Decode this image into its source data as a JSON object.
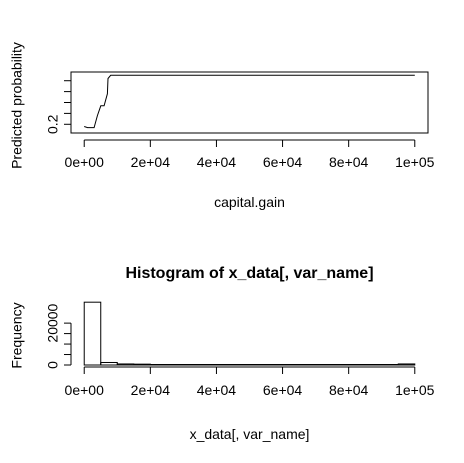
{
  "colors": {
    "background": "#ffffff",
    "ink": "#000000"
  },
  "chart_data": [
    {
      "type": "line",
      "title": "",
      "xlabel": "capital.gain",
      "ylabel": "Predicted probability",
      "xlim": [
        -4000,
        104000
      ],
      "ylim": [
        0.12,
        0.68
      ],
      "grid": false,
      "x_ticks": [
        0,
        20000,
        40000,
        60000,
        80000,
        100000
      ],
      "x_tick_labels": [
        "0e+00",
        "2e+04",
        "4e+04",
        "6e+04",
        "8e+04",
        "1e+05"
      ],
      "y_ticks": [
        0.2,
        0.3,
        0.4,
        0.5,
        0.6
      ],
      "y_tick_labels": [
        "0.2",
        "",
        "",
        "",
        ""
      ],
      "series": [
        {
          "x": [
            0,
            1000,
            2000,
            3000,
            4000,
            5000,
            6000,
            7000,
            7200,
            8000,
            10000,
            20000,
            40000,
            60000,
            80000,
            100000
          ],
          "y": [
            0.18,
            0.17,
            0.17,
            0.17,
            0.28,
            0.37,
            0.37,
            0.48,
            0.62,
            0.65,
            0.65,
            0.65,
            0.65,
            0.65,
            0.65,
            0.65
          ]
        }
      ]
    },
    {
      "type": "bar",
      "title": "Histogram of x_data[, var_name]",
      "xlabel": "x_data[, var_name]",
      "ylabel": "Frequency",
      "xlim": [
        -4000,
        104000
      ],
      "ylim": [
        0,
        32000
      ],
      "grid": false,
      "x_ticks": [
        0,
        20000,
        40000,
        60000,
        80000,
        100000
      ],
      "x_tick_labels": [
        "0e+00",
        "2e+04",
        "4e+04",
        "6e+04",
        "8e+04",
        "1e+05"
      ],
      "y_ticks": [
        0,
        5000,
        10000,
        15000,
        20000
      ],
      "y_tick_labels": [
        "0",
        "",
        "",
        "",
        "20000"
      ],
      "bins": [
        {
          "x0": 0,
          "x1": 5000,
          "count": 30000
        },
        {
          "x0": 5000,
          "x1": 10000,
          "count": 1200
        },
        {
          "x0": 10000,
          "x1": 15000,
          "count": 500
        },
        {
          "x0": 15000,
          "x1": 20000,
          "count": 400
        },
        {
          "x0": 20000,
          "x1": 25000,
          "count": 200
        },
        {
          "x0": 25000,
          "x1": 30000,
          "count": 100
        },
        {
          "x0": 30000,
          "x1": 35000,
          "count": 30
        },
        {
          "x0": 35000,
          "x1": 40000,
          "count": 20
        },
        {
          "x0": 40000,
          "x1": 45000,
          "count": 15
        },
        {
          "x0": 45000,
          "x1": 50000,
          "count": 10
        },
        {
          "x0": 50000,
          "x1": 55000,
          "count": 8
        },
        {
          "x0": 55000,
          "x1": 60000,
          "count": 6
        },
        {
          "x0": 60000,
          "x1": 65000,
          "count": 5
        },
        {
          "x0": 65000,
          "x1": 70000,
          "count": 5
        },
        {
          "x0": 70000,
          "x1": 75000,
          "count": 4
        },
        {
          "x0": 75000,
          "x1": 80000,
          "count": 4
        },
        {
          "x0": 80000,
          "x1": 85000,
          "count": 3
        },
        {
          "x0": 85000,
          "x1": 90000,
          "count": 3
        },
        {
          "x0": 90000,
          "x1": 95000,
          "count": 3
        },
        {
          "x0": 95000,
          "x1": 100000,
          "count": 500
        }
      ]
    }
  ]
}
